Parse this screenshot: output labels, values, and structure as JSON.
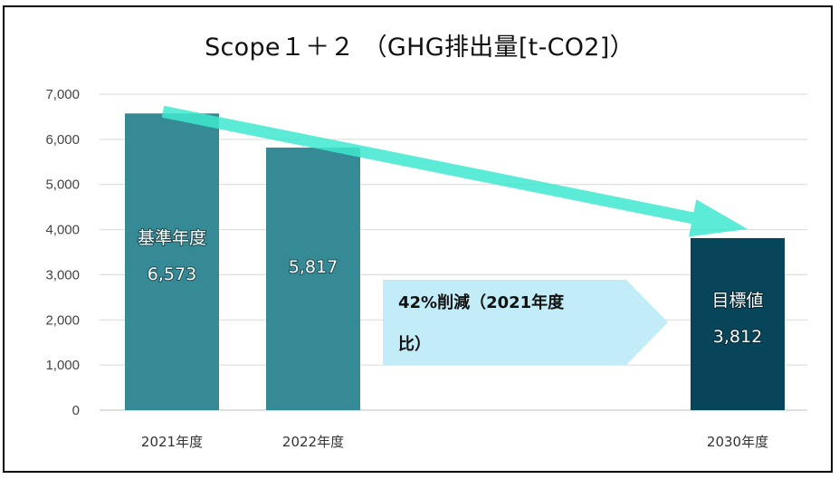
{
  "chart_data": {
    "type": "bar",
    "title": "Scope１＋２ （GHG排出量[t-CO2]）",
    "categories": [
      "2021年度",
      "2022年度",
      "",
      "2030年度"
    ],
    "values": [
      6573,
      5817,
      null,
      3812
    ],
    "value_labels": [
      "6,573",
      "5,817",
      "",
      "3,812"
    ],
    "bar_tags": [
      "基準年度",
      "",
      "",
      "目標値"
    ],
    "bar_colors": [
      "#358a95",
      "#358a95",
      "",
      "#07465a"
    ],
    "ylim": [
      0,
      7000
    ],
    "yticks": [
      0,
      1000,
      2000,
      3000,
      4000,
      5000,
      6000,
      7000
    ],
    "ytick_labels": [
      "0",
      "1,000",
      "2,000",
      "3,000",
      "4,000",
      "5,000",
      "6,000",
      "7,000"
    ],
    "xlabel": "",
    "ylabel": "",
    "grid": true,
    "legend": "none",
    "annotation": {
      "line1": "42%削減（2021年度",
      "line2": "比）",
      "color": "#c2ecf8"
    },
    "trend_arrow_color": "#3ee8cf"
  }
}
